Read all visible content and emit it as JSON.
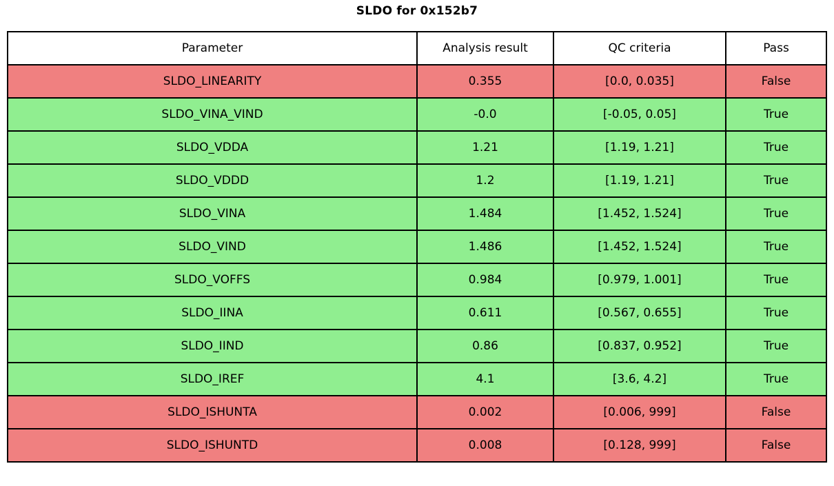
{
  "title": "SLDO for 0x152b7",
  "colors": {
    "pass_row_bg": "#90EE90",
    "fail_row_bg": "#F08080",
    "border": "#000000",
    "header_bg": "#FFFFFF",
    "text": "#000000"
  },
  "table": {
    "headers": [
      "Parameter",
      "Analysis result",
      "QC criteria",
      "Pass"
    ],
    "rows": [
      {
        "parameter": "SLDO_LINEARITY",
        "result": "0.355",
        "criteria": "[0.0, 0.035]",
        "pass": "False",
        "status": "fail"
      },
      {
        "parameter": "SLDO_VINA_VIND",
        "result": "-0.0",
        "criteria": "[-0.05, 0.05]",
        "pass": "True",
        "status": "pass"
      },
      {
        "parameter": "SLDO_VDDA",
        "result": "1.21",
        "criteria": "[1.19, 1.21]",
        "pass": "True",
        "status": "pass"
      },
      {
        "parameter": "SLDO_VDDD",
        "result": "1.2",
        "criteria": "[1.19, 1.21]",
        "pass": "True",
        "status": "pass"
      },
      {
        "parameter": "SLDO_VINA",
        "result": "1.484",
        "criteria": "[1.452, 1.524]",
        "pass": "True",
        "status": "pass"
      },
      {
        "parameter": "SLDO_VIND",
        "result": "1.486",
        "criteria": "[1.452, 1.524]",
        "pass": "True",
        "status": "pass"
      },
      {
        "parameter": "SLDO_VOFFS",
        "result": "0.984",
        "criteria": "[0.979, 1.001]",
        "pass": "True",
        "status": "pass"
      },
      {
        "parameter": "SLDO_IINA",
        "result": "0.611",
        "criteria": "[0.567, 0.655]",
        "pass": "True",
        "status": "pass"
      },
      {
        "parameter": "SLDO_IIND",
        "result": "0.86",
        "criteria": "[0.837, 0.952]",
        "pass": "True",
        "status": "pass"
      },
      {
        "parameter": "SLDO_IREF",
        "result": "4.1",
        "criteria": "[3.6, 4.2]",
        "pass": "True",
        "status": "pass"
      },
      {
        "parameter": "SLDO_ISHUNTA",
        "result": "0.002",
        "criteria": "[0.006, 999]",
        "pass": "False",
        "status": "fail"
      },
      {
        "parameter": "SLDO_ISHUNTD",
        "result": "0.008",
        "criteria": "[0.128, 999]",
        "pass": "False",
        "status": "fail"
      }
    ]
  }
}
